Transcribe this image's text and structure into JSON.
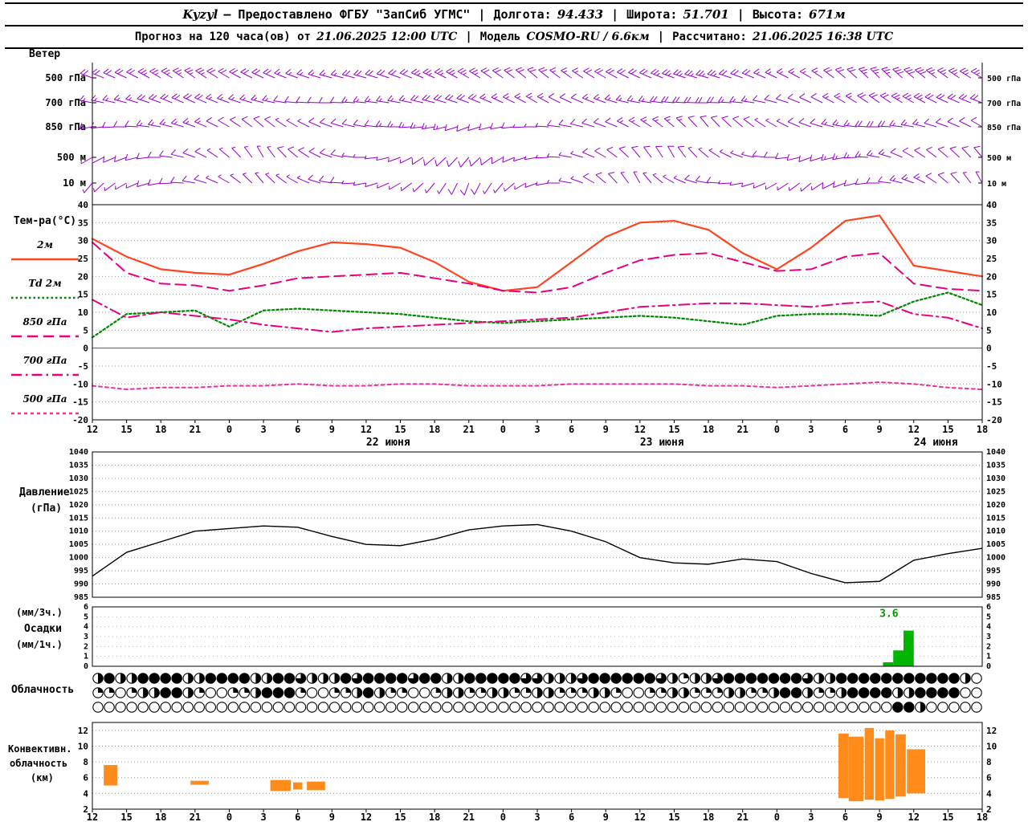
{
  "header": {
    "sep": "|",
    "line1": {
      "station": "Kyzyl",
      "provider": "— Предоставлено ФГБУ \"ЗапСиб УГМС\"",
      "fields": [
        {
          "label": "Долгота:",
          "value": "94.433"
        },
        {
          "label": "Широта:",
          "value": "51.701"
        },
        {
          "label": "Высота:",
          "value": "671м"
        }
      ]
    },
    "line2": {
      "forecast_label": "Прогноз на 120 часа(ов) от",
      "forecast_time": "21.06.2025 12:00 UTC",
      "model_label": "Модель",
      "model_value": "COSMO-RU / 6.6км",
      "calc_label": "Рассчитано:",
      "calc_time": "21.06.2025 16:38 UTC"
    }
  },
  "panels": {
    "wind": {
      "title": "Ветер"
    },
    "temperature": {
      "title": "Тем-ра(°C)"
    },
    "pressure": {
      "title_line1": "Давление",
      "title_line2": "(гПа)"
    },
    "precip": {
      "label1": "(мм/3ч.)",
      "label2": "Осадки",
      "label3": "(мм/1ч.)"
    },
    "cloud": {
      "title": "Облачность"
    },
    "convective": {
      "title_line1": "Конвективн.",
      "title_line2": "облачность",
      "title_line3": "(км)"
    }
  },
  "axis": {
    "step_hours": 3,
    "hours": [
      "12",
      "15",
      "18",
      "21",
      "0",
      "3",
      "6",
      "9",
      "12",
      "15",
      "18",
      "21",
      "0",
      "3",
      "6",
      "9",
      "12",
      "15",
      "18",
      "21",
      "0",
      "3",
      "6",
      "9",
      "12",
      "15",
      "18"
    ],
    "dates": [
      {
        "label": "22 июня",
        "index": 8
      },
      {
        "label": "23 июня",
        "index": 16
      },
      {
        "label": "24 июня",
        "index": 24
      }
    ]
  },
  "chart_data": [
    {
      "id": "wind",
      "type": "wind-barbs",
      "color": "#9900cc",
      "hours_total": 78,
      "levels": [
        {
          "name": "500 гПа",
          "dir": [
            290,
            295,
            300,
            305,
            300,
            295,
            290,
            285,
            285,
            290,
            295,
            300,
            305,
            310,
            305,
            300,
            295,
            290,
            285,
            290,
            295,
            300,
            310,
            315,
            310,
            305,
            300
          ],
          "speed_kt": [
            20,
            20,
            25,
            25,
            20,
            20,
            15,
            15,
            20,
            20,
            25,
            25,
            20,
            20,
            15,
            20,
            20,
            25,
            25,
            20,
            15,
            15,
            20,
            25,
            30,
            25,
            25
          ]
        },
        {
          "name": "700 гПа",
          "dir": [
            280,
            285,
            290,
            295,
            290,
            285,
            275,
            270,
            275,
            280,
            285,
            290,
            295,
            300,
            295,
            290,
            280,
            275,
            270,
            275,
            285,
            295,
            300,
            305,
            300,
            295,
            290
          ],
          "speed_kt": [
            15,
            15,
            20,
            20,
            15,
            15,
            10,
            10,
            15,
            15,
            20,
            20,
            15,
            15,
            10,
            15,
            15,
            20,
            20,
            15,
            10,
            10,
            15,
            20,
            25,
            20,
            20
          ]
        },
        {
          "name": "850 гПа",
          "dir": [
            260,
            270,
            280,
            290,
            300,
            310,
            300,
            290,
            280,
            270,
            260,
            250,
            260,
            270,
            280,
            290,
            300,
            310,
            320,
            310,
            300,
            290,
            280,
            270,
            280,
            290,
            300
          ],
          "speed_kt": [
            10,
            10,
            15,
            15,
            10,
            10,
            5,
            10,
            10,
            15,
            15,
            10,
            10,
            5,
            10,
            10,
            15,
            15,
            10,
            10,
            5,
            10,
            15,
            20,
            15,
            10,
            10
          ]
        },
        {
          "name": "500 м",
          "dir": [
            240,
            250,
            270,
            290,
            310,
            330,
            310,
            290,
            270,
            250,
            230,
            220,
            240,
            260,
            280,
            300,
            320,
            330,
            310,
            290,
            270,
            250,
            260,
            280,
            300,
            310,
            320
          ],
          "speed_kt": [
            5,
            10,
            10,
            10,
            5,
            5,
            10,
            10,
            5,
            5,
            10,
            10,
            10,
            5,
            5,
            10,
            10,
            10,
            5,
            5,
            10,
            10,
            15,
            15,
            10,
            10,
            10
          ]
        },
        {
          "name": "10 м",
          "dir": [
            220,
            240,
            260,
            280,
            300,
            320,
            300,
            280,
            260,
            240,
            220,
            200,
            220,
            250,
            280,
            310,
            330,
            300,
            280,
            260,
            240,
            230,
            250,
            270,
            290,
            310,
            330
          ],
          "speed_kt": [
            5,
            5,
            10,
            10,
            5,
            5,
            5,
            10,
            5,
            5,
            5,
            10,
            5,
            5,
            5,
            10,
            5,
            5,
            10,
            5,
            5,
            5,
            10,
            10,
            15,
            10,
            5
          ]
        }
      ]
    },
    {
      "id": "temperature",
      "type": "line",
      "ylim": [
        -20,
        40
      ],
      "yticks": [
        -20,
        -15,
        -10,
        -5,
        0,
        5,
        10,
        15,
        20,
        25,
        30,
        35,
        40
      ],
      "zero_line_color": "#4444ff",
      "series": [
        {
          "name": "2м",
          "color": "#ff4422",
          "style": "solid",
          "width": 2.2,
          "values": [
            30.5,
            25.5,
            22,
            21,
            20.5,
            23.5,
            27,
            29.5,
            29,
            28,
            24,
            18.5,
            16,
            17,
            24,
            31,
            35,
            35.5,
            33,
            26.5,
            22,
            28,
            35.5,
            37,
            23,
            21.5,
            20
          ]
        },
        {
          "name": "Td 2м",
          "color": "#008800",
          "style": "dotted",
          "width": 2.2,
          "values": [
            3,
            9.5,
            10,
            10.5,
            6,
            10.5,
            11,
            10.5,
            10,
            9.5,
            8.5,
            7.5,
            7,
            7.5,
            8,
            8.5,
            9,
            8.5,
            7.5,
            6.5,
            9,
            9.5,
            9.5,
            9,
            13,
            15.5,
            12
          ]
        },
        {
          "name": "850 гПа",
          "color": "#e8007e",
          "style": "dashed",
          "width": 2,
          "values": [
            29.5,
            21,
            18,
            17.5,
            16,
            17.5,
            19.5,
            20,
            20.5,
            21,
            19.5,
            18,
            16,
            15.5,
            17,
            21,
            24.5,
            26,
            26.5,
            24,
            21.5,
            22,
            25.5,
            26.5,
            18,
            16.5,
            16
          ]
        },
        {
          "name": "700 гПа",
          "color": "#e8007e",
          "style": "dashdot",
          "width": 2,
          "values": [
            13.5,
            8.5,
            10,
            9,
            8,
            6.5,
            5.5,
            4.5,
            5.5,
            6,
            6.5,
            7,
            7.5,
            8,
            8.5,
            10,
            11.5,
            12,
            12.5,
            12.5,
            12,
            11.5,
            12.5,
            13,
            9.5,
            8.5,
            5.5
          ]
        },
        {
          "name": "500 гПа",
          "color": "#f0309a",
          "style": "shortdash",
          "width": 2,
          "values": [
            -10.5,
            -11.5,
            -11,
            -11,
            -10.5,
            -10.5,
            -10,
            -10.5,
            -10.5,
            -10,
            -10,
            -10.5,
            -10.5,
            -10.5,
            -10,
            -10,
            -10,
            -10,
            -10.5,
            -10.5,
            -11,
            -10.5,
            -10,
            -9.5,
            -10,
            -11,
            -11.5
          ]
        }
      ]
    },
    {
      "id": "pressure",
      "type": "line",
      "ylim": [
        985,
        1040
      ],
      "yticks": [
        985,
        990,
        995,
        1000,
        1005,
        1010,
        1015,
        1020,
        1025,
        1030,
        1035,
        1040
      ],
      "series": [
        {
          "name": "Давление",
          "color": "#000000",
          "style": "solid",
          "width": 1.4,
          "values": [
            993,
            1002,
            1006,
            1010,
            1011,
            1012,
            1011.5,
            1008,
            1005,
            1004.5,
            1007,
            1010.5,
            1012,
            1012.5,
            1010,
            1006,
            1000,
            998,
            997.5,
            999.5,
            998.5,
            994,
            990.5,
            991,
            999,
            1001.5,
            1003.5
          ]
        }
      ]
    },
    {
      "id": "precip",
      "type": "bar",
      "ylim": [
        0,
        6
      ],
      "yticks": [
        0,
        1,
        2,
        3,
        4,
        5,
        6
      ],
      "color": "#00b400",
      "bars": [
        {
          "index": 23.1,
          "width": 0.3,
          "value": 0.4
        },
        {
          "index": 23.4,
          "width": 0.3,
          "value": 1.6
        },
        {
          "index": 23.7,
          "width": 0.3,
          "value": 3.6
        }
      ],
      "annotation": {
        "text": "3.6",
        "index": 23.0,
        "value": 5.0,
        "color": "#009900"
      }
    },
    {
      "id": "cloud",
      "type": "cloud-cover-symbols",
      "octas_scale": 8,
      "rows": [
        {
          "octas": "4844888844888844886444868888688448888866444688888864244688888886448888888888840"
        },
        {
          "octas": "2202448842002248882002248422002442244224422244200224422244224884224888844888800"
        },
        {
          "octas": "0000000000000000000000000000000000000000000000000000000000000000000000088400000"
        }
      ]
    },
    {
      "id": "convective",
      "type": "range-bars",
      "ylim": [
        2,
        13
      ],
      "yticks": [
        2,
        4,
        6,
        8,
        10,
        12
      ],
      "color": "#ff8c1a",
      "hours_total": 78,
      "bars_km": [
        {
          "h0": 1.0,
          "h1": 2.2,
          "base": 5.0,
          "top": 7.6
        },
        {
          "h0": 8.6,
          "h1": 10.2,
          "base": 5.1,
          "top": 5.6
        },
        {
          "h0": 15.6,
          "h1": 17.4,
          "base": 4.3,
          "top": 5.7
        },
        {
          "h0": 17.6,
          "h1": 18.4,
          "base": 4.5,
          "top": 5.4
        },
        {
          "h0": 18.8,
          "h1": 20.4,
          "base": 4.4,
          "top": 5.5
        },
        {
          "h0": 65.4,
          "h1": 66.3,
          "base": 3.4,
          "top": 11.6
        },
        {
          "h0": 66.3,
          "h1": 67.6,
          "base": 3.0,
          "top": 11.2
        },
        {
          "h0": 67.7,
          "h1": 68.5,
          "base": 3.2,
          "top": 12.3
        },
        {
          "h0": 68.6,
          "h1": 69.4,
          "base": 3.1,
          "top": 11.0
        },
        {
          "h0": 69.5,
          "h1": 70.3,
          "base": 3.3,
          "top": 12.0
        },
        {
          "h0": 70.4,
          "h1": 71.3,
          "base": 3.6,
          "top": 11.5
        },
        {
          "h0": 71.4,
          "h1": 73.0,
          "base": 4.0,
          "top": 9.6
        }
      ]
    }
  ]
}
